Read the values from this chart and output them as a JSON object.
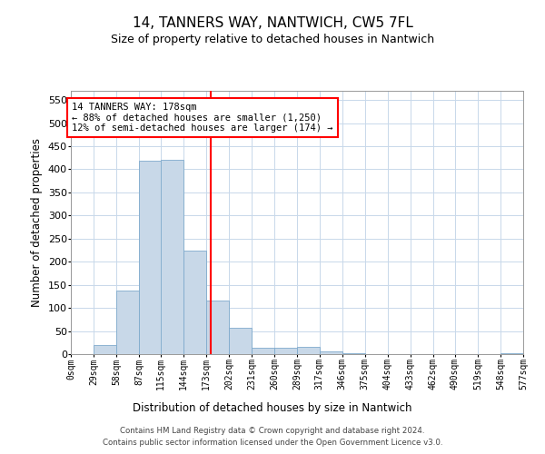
{
  "title": "14, TANNERS WAY, NANTWICH, CW5 7FL",
  "subtitle": "Size of property relative to detached houses in Nantwich",
  "xlabel": "Distribution of detached houses by size in Nantwich",
  "ylabel": "Number of detached properties",
  "bin_edges": [
    0,
    29,
    58,
    87,
    115,
    144,
    173,
    202,
    231,
    260,
    289,
    317,
    346,
    375,
    404,
    433,
    462,
    490,
    519,
    548,
    577
  ],
  "bar_heights": [
    0,
    20,
    137,
    418,
    420,
    225,
    116,
    57,
    13,
    14,
    15,
    6,
    1,
    0,
    0,
    0,
    0,
    0,
    0,
    1
  ],
  "bar_color": "#c8d8e8",
  "bar_edge_color": "#7faacc",
  "red_line_x": 178,
  "ylim": [
    0,
    570
  ],
  "yticks": [
    0,
    50,
    100,
    150,
    200,
    250,
    300,
    350,
    400,
    450,
    500,
    550
  ],
  "annotation_title": "14 TANNERS WAY: 178sqm",
  "annotation_line1": "← 88% of detached houses are smaller (1,250)",
  "annotation_line2": "12% of semi-detached houses are larger (174) →",
  "footer_line1": "Contains HM Land Registry data © Crown copyright and database right 2024.",
  "footer_line2": "Contains public sector information licensed under the Open Government Licence v3.0.",
  "background_color": "#ffffff",
  "grid_color": "#c8d8ea"
}
